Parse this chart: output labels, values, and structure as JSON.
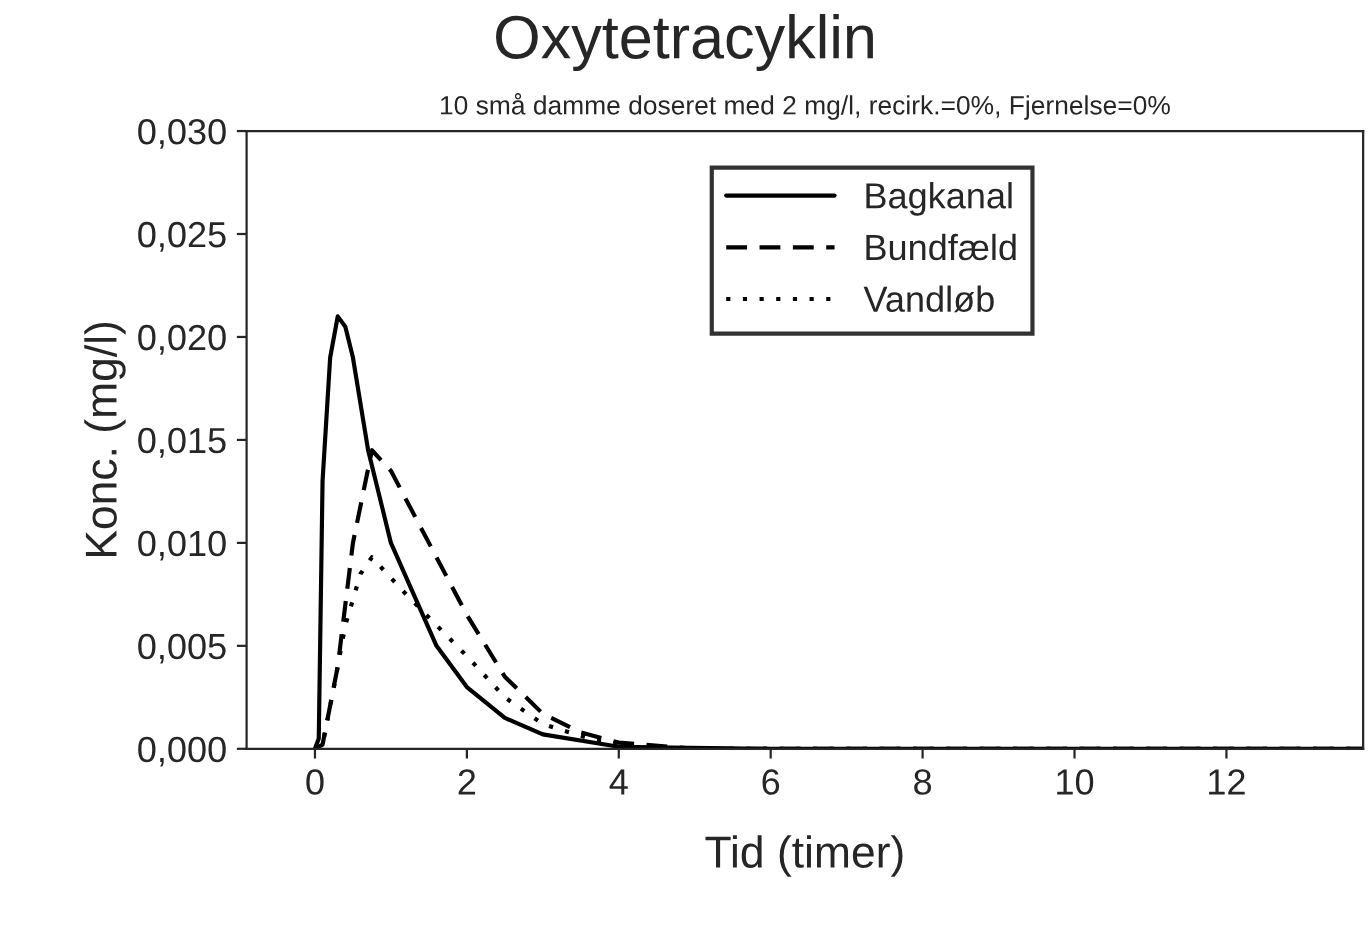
{
  "chart_data": {
    "type": "line",
    "title": "Oxytetracyklin",
    "subtitle": "10 små damme doseret med 2 mg/l, recirk.=0%, Fjernelse=0%",
    "xlabel": "Tid (timer)",
    "ylabel": "Konc. (mg/l)",
    "xlim": [
      -0.9,
      13.8
    ],
    "xticks": [
      0,
      2,
      4,
      6,
      8,
      10,
      12
    ],
    "ylim": [
      0,
      0.03
    ],
    "yticks": [
      {
        "value": 0,
        "label": "0,000"
      },
      {
        "value": 0.005,
        "label": "0,005"
      },
      {
        "value": 0.01,
        "label": "0,010"
      },
      {
        "value": 0.015,
        "label": "0,015"
      },
      {
        "value": 0.02,
        "label": "0,020"
      },
      {
        "value": 0.025,
        "label": "0,025"
      },
      {
        "value": 0.03,
        "label": "0,030"
      }
    ],
    "grid": false,
    "legend": "top right",
    "series": [
      {
        "name": "Bagkanal",
        "color": "#000000",
        "line_style": "solid",
        "x": [
          0,
          0.05,
          0.1,
          0.2,
          0.3,
          0.4,
          0.5,
          0.7,
          1.0,
          1.3,
          1.6,
          2.0,
          2.5,
          3.0,
          4.0,
          6.0,
          10.0,
          13.8
        ],
        "values": [
          0,
          0.0005,
          0.013,
          0.019,
          0.021,
          0.0205,
          0.019,
          0.0145,
          0.01,
          0.0075,
          0.005,
          0.003,
          0.0015,
          0.0007,
          0.0001,
          0,
          0,
          0
        ]
      },
      {
        "name": "Bundfæld",
        "color": "#000000",
        "line_style": "dashed",
        "x": [
          0,
          0.1,
          0.3,
          0.5,
          0.75,
          1.0,
          1.5,
          2.0,
          2.5,
          3.0,
          3.5,
          4.0,
          5.0,
          8.0,
          13.8
        ],
        "values": [
          0,
          0.0002,
          0.004,
          0.01,
          0.0145,
          0.0135,
          0.01,
          0.0065,
          0.0035,
          0.0017,
          0.0008,
          0.0003,
          0,
          0,
          0
        ]
      },
      {
        "name": "Vandløb",
        "color": "#000000",
        "line_style": "dotted",
        "x": [
          0,
          0.1,
          0.25,
          0.4,
          0.6,
          0.75,
          1.2,
          1.6,
          2.0,
          2.5,
          3.0,
          3.7,
          4.5,
          8.0,
          13.8
        ],
        "values": [
          0,
          0.0002,
          0.003,
          0.006,
          0.0085,
          0.0093,
          0.0075,
          0.006,
          0.0045,
          0.0025,
          0.0012,
          0.0004,
          0,
          0,
          0
        ]
      }
    ]
  }
}
